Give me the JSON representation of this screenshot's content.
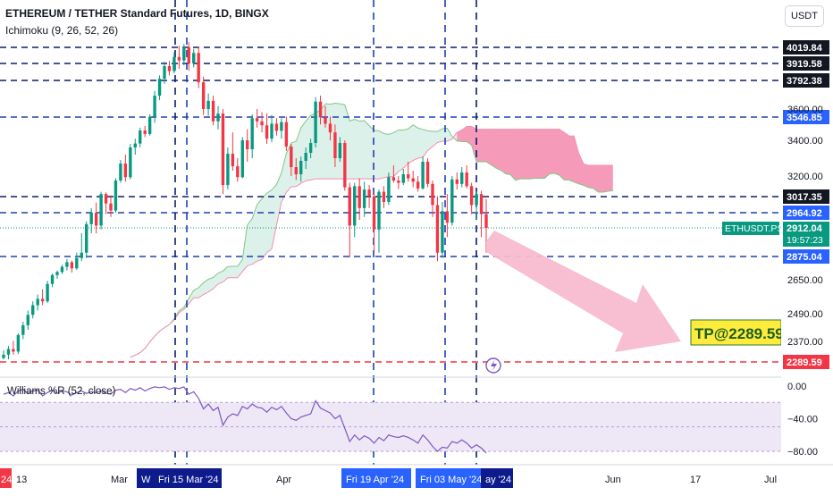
{
  "header": {
    "title": "ETHEREUM / TETHER Standard Futures, 1D, BINGX",
    "indicator": "Ichimoku (9, 26, 52, 26)",
    "currency_button": "USDT"
  },
  "colors": {
    "bull": "#089981",
    "bear": "#f23645",
    "cloud_bull": "#d7efe7",
    "cloud_bear": "#f48fb1",
    "hline_blue": "#1e40af",
    "hline_dark": "#0d1b6b",
    "hline_red": "#f23645",
    "arrow": "#f8bbd0",
    "tp_box": "#ffeb3b",
    "williams": "#7e57c2",
    "williams_band": "#ede7f6",
    "price_tag": "#089981"
  },
  "chart_data": {
    "type": "candlestick",
    "symbol": "ETHUSDT.PS",
    "y_axis": {
      "ticks": [
        3600,
        3400,
        3200,
        2650,
        2490,
        2370
      ],
      "tick_labels": [
        "3600.00",
        "3400.00",
        "3200.00",
        "2650.00",
        "2490.00",
        "2370.00"
      ]
    },
    "x_axis": {
      "labels": [
        "24",
        "13",
        "Mar",
        "Apr",
        "Jun",
        "17",
        "Jul"
      ],
      "highlighted_labels": [
        "W",
        "Fri 15 Mar '24",
        "Fri 19 Apr '24",
        "Fri 03 May '24",
        "ay '24"
      ]
    },
    "horizontal_levels": [
      {
        "value": 4019.84,
        "label": "4019.84",
        "style": "dark"
      },
      {
        "value": 3919.58,
        "label": "3919.58",
        "style": "dark"
      },
      {
        "value": 3792.38,
        "label": "3792.38",
        "style": "dark"
      },
      {
        "value": 3546.85,
        "label": "3546.85",
        "style": "blue"
      },
      {
        "value": 3017.35,
        "label": "3017.35",
        "style": "dark"
      },
      {
        "value": 2964.92,
        "label": "2964.92",
        "style": "blue"
      },
      {
        "value": 2875.04,
        "label": "2875.04",
        "style": "blue"
      },
      {
        "value": 2289.59,
        "label": "2289.59",
        "style": "red"
      }
    ],
    "last_price": {
      "label": "ETHUSDT.PS",
      "value": "2912.04",
      "countdown": "19:57:23"
    },
    "target": {
      "label": "TP@2289.59",
      "value": 2289.59
    },
    "candles_ohlc": [
      [
        2305,
        2335,
        2280,
        2318
      ],
      [
        2318,
        2352,
        2300,
        2340
      ],
      [
        2340,
        2372,
        2318,
        2330
      ],
      [
        2330,
        2405,
        2320,
        2398
      ],
      [
        2398,
        2455,
        2380,
        2440
      ],
      [
        2440,
        2505,
        2420,
        2485
      ],
      [
        2485,
        2548,
        2470,
        2530
      ],
      [
        2530,
        2580,
        2505,
        2560
      ],
      [
        2560,
        2605,
        2530,
        2548
      ],
      [
        2548,
        2645,
        2540,
        2630
      ],
      [
        2630,
        2710,
        2615,
        2695
      ],
      [
        2695,
        2740,
        2660,
        2725
      ],
      [
        2725,
        2795,
        2705,
        2775
      ],
      [
        2775,
        2850,
        2740,
        2820
      ],
      [
        2820,
        2835,
        2720,
        2760
      ],
      [
        2760,
        2880,
        2745,
        2860
      ],
      [
        2860,
        2905,
        2830,
        2880
      ],
      [
        2880,
        2935,
        2860,
        2925
      ],
      [
        2925,
        2980,
        2905,
        2965
      ],
      [
        2965,
        2998,
        2905,
        2920
      ],
      [
        2920,
        3060,
        2910,
        3040
      ],
      [
        3040,
        3055,
        2960,
        2995
      ],
      [
        2995,
        3030,
        2950,
        2972
      ],
      [
        2972,
        3180,
        2965,
        3160
      ],
      [
        3160,
        3290,
        3140,
        3270
      ],
      [
        3270,
        3320,
        3150,
        3190
      ],
      [
        3190,
        3380,
        3170,
        3360
      ],
      [
        3360,
        3410,
        3320,
        3382
      ],
      [
        3382,
        3480,
        3360,
        3462
      ],
      [
        3462,
        3490,
        3420,
        3440
      ],
      [
        3440,
        3565,
        3430,
        3548
      ],
      [
        3548,
        3720,
        3510,
        3690
      ],
      [
        3690,
        3830,
        3660,
        3805
      ],
      [
        3805,
        3930,
        3770,
        3900
      ],
      [
        3900,
        3935,
        3830,
        3862
      ],
      [
        3862,
        3990,
        3845,
        3960
      ],
      [
        3960,
        4035,
        3880,
        3938
      ],
      [
        3938,
        4052,
        3905,
        4020
      ],
      [
        4020,
        4070,
        3865,
        3920
      ],
      [
        3920,
        4010,
        3890,
        3985
      ],
      [
        3985,
        4025,
        3740,
        3780
      ],
      [
        3780,
        3820,
        3560,
        3600
      ],
      [
        3600,
        3705,
        3555,
        3655
      ],
      [
        3655,
        3690,
        3495,
        3520
      ],
      [
        3520,
        3620,
        3470,
        3570
      ],
      [
        3570,
        3600,
        3040,
        3120
      ],
      [
        3120,
        3360,
        3080,
        3325
      ],
      [
        3325,
        3450,
        3230,
        3255
      ],
      [
        3255,
        3300,
        3150,
        3190
      ],
      [
        3190,
        3420,
        3180,
        3400
      ],
      [
        3400,
        3470,
        3280,
        3350
      ],
      [
        3350,
        3565,
        3300,
        3540
      ],
      [
        3540,
        3600,
        3480,
        3520
      ],
      [
        3520,
        3580,
        3450,
        3495
      ],
      [
        3495,
        3570,
        3380,
        3410
      ],
      [
        3410,
        3560,
        3390,
        3505
      ],
      [
        3505,
        3540,
        3430,
        3460
      ],
      [
        3460,
        3540,
        3410,
        3515
      ],
      [
        3515,
        3550,
        3340,
        3365
      ],
      [
        3365,
        3380,
        3200,
        3250
      ],
      [
        3250,
        3300,
        3165,
        3210
      ],
      [
        3210,
        3310,
        3150,
        3285
      ],
      [
        3285,
        3360,
        3240,
        3330
      ],
      [
        3330,
        3410,
        3300,
        3385
      ],
      [
        3385,
        3680,
        3360,
        3650
      ],
      [
        3650,
        3690,
        3500,
        3545
      ],
      [
        3545,
        3620,
        3480,
        3505
      ],
      [
        3505,
        3550,
        3400,
        3450
      ],
      [
        3450,
        3500,
        3250,
        3300
      ],
      [
        3300,
        3420,
        3280,
        3385
      ],
      [
        3385,
        3400,
        3070,
        3100
      ],
      [
        3100,
        3140,
        2870,
        2920
      ],
      [
        2920,
        3140,
        2900,
        3110
      ],
      [
        3110,
        3180,
        2940,
        2980
      ],
      [
        2980,
        3150,
        2950,
        3080
      ],
      [
        3080,
        3120,
        2980,
        3020
      ],
      [
        3020,
        3050,
        2880,
        2910
      ],
      [
        2910,
        3080,
        2880,
        3060
      ],
      [
        3060,
        3110,
        2980,
        3000
      ],
      [
        3000,
        3220,
        2990,
        3190
      ],
      [
        3190,
        3260,
        3140,
        3160
      ],
      [
        3160,
        3200,
        3085,
        3140
      ],
      [
        3140,
        3240,
        3120,
        3210
      ],
      [
        3210,
        3280,
        3150,
        3180
      ],
      [
        3180,
        3230,
        3100,
        3150
      ],
      [
        3150,
        3200,
        3060,
        3090
      ],
      [
        3090,
        3310,
        3080,
        3280
      ],
      [
        3280,
        3300,
        3100,
        3130
      ],
      [
        3130,
        3160,
        2950,
        2990
      ],
      [
        2990,
        3020,
        2830,
        2880
      ],
      [
        2880,
        3000,
        2860,
        2970
      ],
      [
        2970,
        3040,
        2900,
        2930
      ],
      [
        2930,
        3200,
        2920,
        3170
      ],
      [
        3170,
        3220,
        3080,
        3130
      ],
      [
        3130,
        3250,
        3100,
        3220
      ],
      [
        3220,
        3260,
        3090,
        3110
      ],
      [
        3110,
        3140,
        2960,
        2990
      ],
      [
        2990,
        3060,
        2940,
        3040
      ],
      [
        3040,
        3070,
        2900,
        2960
      ],
      [
        2960,
        3010,
        2880,
        2912
      ]
    ],
    "williams_r": {
      "label": "Williams %R (52, close)",
      "ticks": [
        0,
        -40,
        -80
      ],
      "tick_labels": [
        "0.00",
        "−40.00",
        "−80.00"
      ],
      "values": [
        -10,
        -8,
        -12,
        -6,
        -4,
        -9,
        -6,
        -5,
        -12,
        -8,
        -5,
        -9,
        -6,
        -7,
        -11,
        -8,
        -6,
        -9,
        -7,
        -8,
        -6,
        -9,
        -10,
        -5,
        -4,
        -8,
        -3,
        -5,
        -2,
        -6,
        -3,
        -1,
        -2,
        -1,
        -4,
        -2,
        -3,
        -1,
        -10,
        -7,
        -15,
        -28,
        -22,
        -30,
        -26,
        -48,
        -38,
        -34,
        -36,
        -25,
        -28,
        -22,
        -26,
        -27,
        -32,
        -26,
        -29,
        -25,
        -33,
        -40,
        -42,
        -38,
        -36,
        -34,
        -18,
        -27,
        -30,
        -33,
        -40,
        -36,
        -52,
        -68,
        -60,
        -66,
        -61,
        -64,
        -70,
        -63,
        -67,
        -60,
        -62,
        -63,
        -61,
        -63,
        -66,
        -70,
        -60,
        -66,
        -74,
        -80,
        -75,
        -76,
        -68,
        -70,
        -66,
        -70,
        -76,
        -72,
        -76,
        -82
      ]
    }
  }
}
